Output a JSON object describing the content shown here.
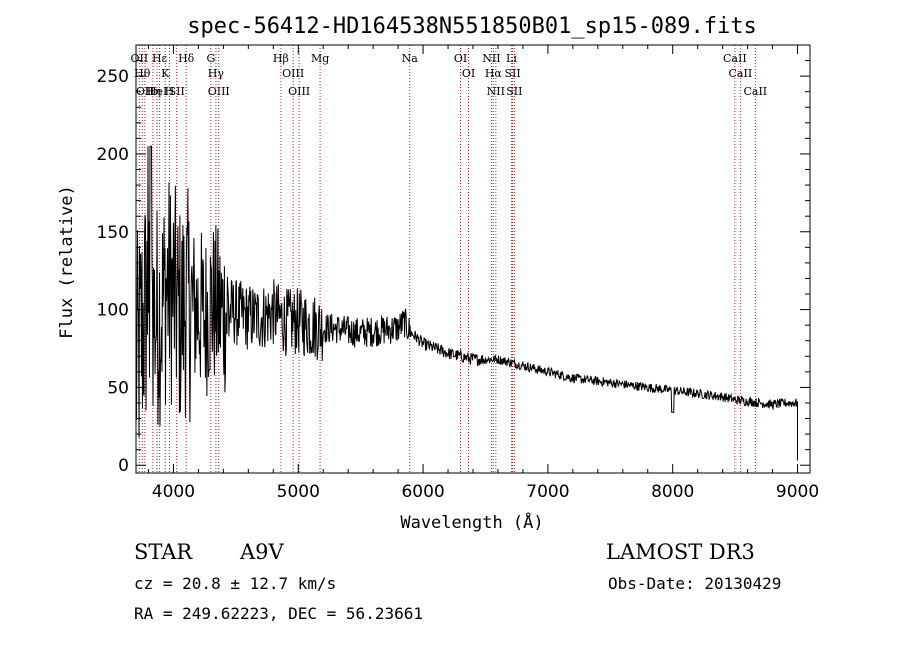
{
  "chart_data": {
    "type": "line",
    "title": "spec-56412-HD164538N551850B01_sp15-089.fits",
    "xlabel": "Wavelength (Å)",
    "ylabel": "Flux (relative)",
    "xlim": [
      3700,
      9100
    ],
    "ylim": [
      -5,
      270
    ],
    "xticks": [
      4000,
      5000,
      6000,
      7000,
      8000,
      9000
    ],
    "xtick_labels": [
      "4000",
      "5000",
      "6000",
      "7000",
      "8000",
      "9000"
    ],
    "yticks": [
      0,
      50,
      100,
      150,
      200,
      250
    ],
    "ytick_labels": [
      "0",
      "50",
      "100",
      "150",
      "200",
      "250"
    ],
    "grid": false,
    "series": [
      {
        "name": "flux",
        "x": [
          3700,
          3750,
          3800,
          3850,
          3900,
          3950,
          4000,
          4050,
          4100,
          4150,
          4200,
          4250,
          4300,
          4350,
          4400,
          4450,
          4500,
          4600,
          4700,
          4800,
          4900,
          5000,
          5100,
          5200,
          5300,
          5400,
          5500,
          5600,
          5700,
          5800,
          5850,
          5900,
          5950,
          6000,
          6100,
          6200,
          6300,
          6400,
          6500,
          6600,
          6700,
          6800,
          6900,
          7000,
          7100,
          7200,
          7300,
          7400,
          7500,
          7600,
          7700,
          7800,
          7900,
          8000,
          8100,
          8200,
          8300,
          8400,
          8500,
          8600,
          8700,
          8800,
          8900,
          9000
        ],
        "y": [
          60,
          88,
          110,
          95,
          100,
          115,
          110,
          95,
          105,
          100,
          100,
          95,
          105,
          100,
          98,
          100,
          98,
          95,
          95,
          98,
          92,
          92,
          90,
          88,
          88,
          86,
          85,
          86,
          87,
          88,
          92,
          85,
          82,
          78,
          75,
          72,
          70,
          68,
          68,
          68,
          66,
          64,
          62,
          60,
          58,
          56,
          55,
          54,
          53,
          52,
          51,
          50,
          49,
          48,
          47,
          46,
          45,
          44,
          42,
          41,
          40,
          39,
          40,
          40
        ]
      }
    ],
    "line_markers": [
      {
        "wavelength": 3727,
        "label": "OII"
      },
      {
        "wavelength": 3750,
        "label": "Hθ"
      },
      {
        "wavelength": 3771,
        "label": "OII"
      },
      {
        "wavelength": 3835,
        "label": "Hη"
      },
      {
        "wavelength": 3869,
        "label": "HeI"
      },
      {
        "wavelength": 3889,
        "label": "Hε"
      },
      {
        "wavelength": 3934,
        "label": "K"
      },
      {
        "wavelength": 3968,
        "label": "H"
      },
      {
        "wavelength": 4026,
        "label": "SII"
      },
      {
        "wavelength": 4102,
        "label": "Hδ"
      },
      {
        "wavelength": 4300,
        "label": "G"
      },
      {
        "wavelength": 4340,
        "label": "Hγ"
      },
      {
        "wavelength": 4363,
        "label": "OIII"
      },
      {
        "wavelength": 4861,
        "label": "Hβ"
      },
      {
        "wavelength": 4959,
        "label": "OIII"
      },
      {
        "wavelength": 5007,
        "label": "OIII"
      },
      {
        "wavelength": 5175,
        "label": "Mg"
      },
      {
        "wavelength": 5893,
        "label": "Na"
      },
      {
        "wavelength": 6300,
        "label": "OI"
      },
      {
        "wavelength": 6364,
        "label": "OI"
      },
      {
        "wavelength": 6548,
        "label": "NII"
      },
      {
        "wavelength": 6563,
        "label": "Hα"
      },
      {
        "wavelength": 6583,
        "label": "NII"
      },
      {
        "wavelength": 6708,
        "label": "Li"
      },
      {
        "wavelength": 6717,
        "label": "SII"
      },
      {
        "wavelength": 6731,
        "label": "SII"
      },
      {
        "wavelength": 8498,
        "label": "CaII"
      },
      {
        "wavelength": 8542,
        "label": "CaII"
      },
      {
        "wavelength": 8662,
        "label": "CaII"
      }
    ],
    "colors": {
      "spectrum": "#000000",
      "marker": "#b22222",
      "axes": "#000000"
    }
  },
  "info": {
    "object_class": "STAR",
    "subclass": "A9V",
    "survey": "LAMOST DR3",
    "redshift": "cz = 20.8 ± 12.7 km/s",
    "obs_date": "Obs-Date: 20130429",
    "coords": "RA = 249.62223, DEC =  56.23661"
  }
}
